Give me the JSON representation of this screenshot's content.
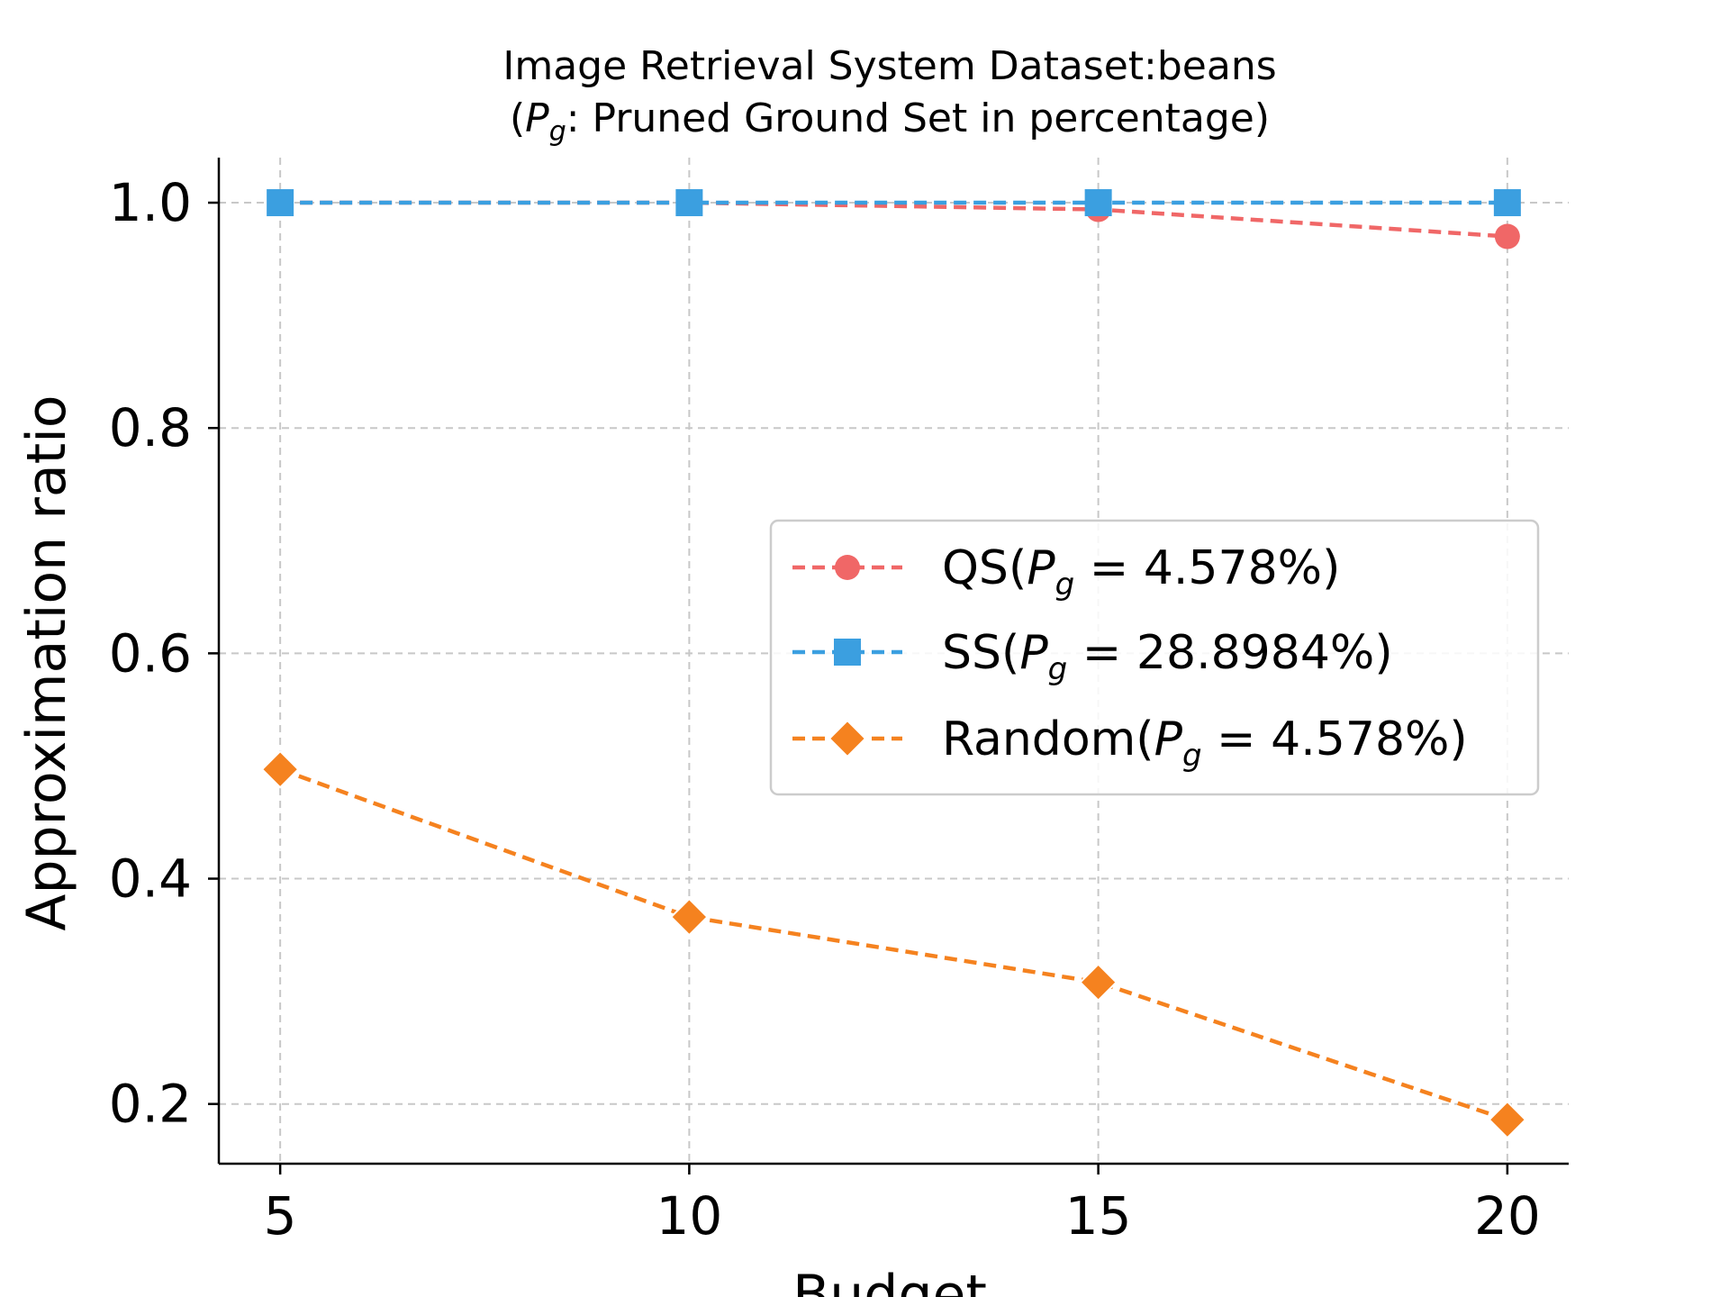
{
  "chart_data": {
    "type": "line",
    "title_line1": "Image Retrieval System Dataset:beans",
    "title_line2_prefix": "(",
    "title_line2_suffix": ": Pruned Ground Set in percentage)",
    "pg_symbol": "P",
    "pg_subscript": "g",
    "xlabel": "Budget",
    "ylabel": "Approximation ratio",
    "x": [
      5,
      10,
      15,
      20
    ],
    "x_tick_labels": [
      "5",
      "10",
      "15",
      "20"
    ],
    "y_ticks": [
      0.2,
      0.4,
      0.6,
      0.8,
      1.0
    ],
    "y_tick_labels": [
      "0.2",
      "0.4",
      "0.6",
      "0.8",
      "1.0"
    ],
    "xlim": [
      4.25,
      20.75
    ],
    "ylim": [
      0.147,
      1.04
    ],
    "grid": true,
    "legend_position": "right-center",
    "series": [
      {
        "label_prefix": "QS(",
        "label_value": " = 4.578%)",
        "color": "#f06767",
        "marker": "circle",
        "values": [
          1.0,
          1.0,
          0.994,
          0.97
        ]
      },
      {
        "label_prefix": "SS(",
        "label_value": " = 28.8984%)",
        "color": "#3b9fe0",
        "marker": "square",
        "values": [
          1.0,
          1.0,
          1.0,
          1.0
        ]
      },
      {
        "label_prefix": "Random(",
        "label_value": " = 4.578%)",
        "color": "#f5821f",
        "marker": "diamond",
        "values": [
          0.497,
          0.366,
          0.308,
          0.186
        ]
      }
    ]
  }
}
